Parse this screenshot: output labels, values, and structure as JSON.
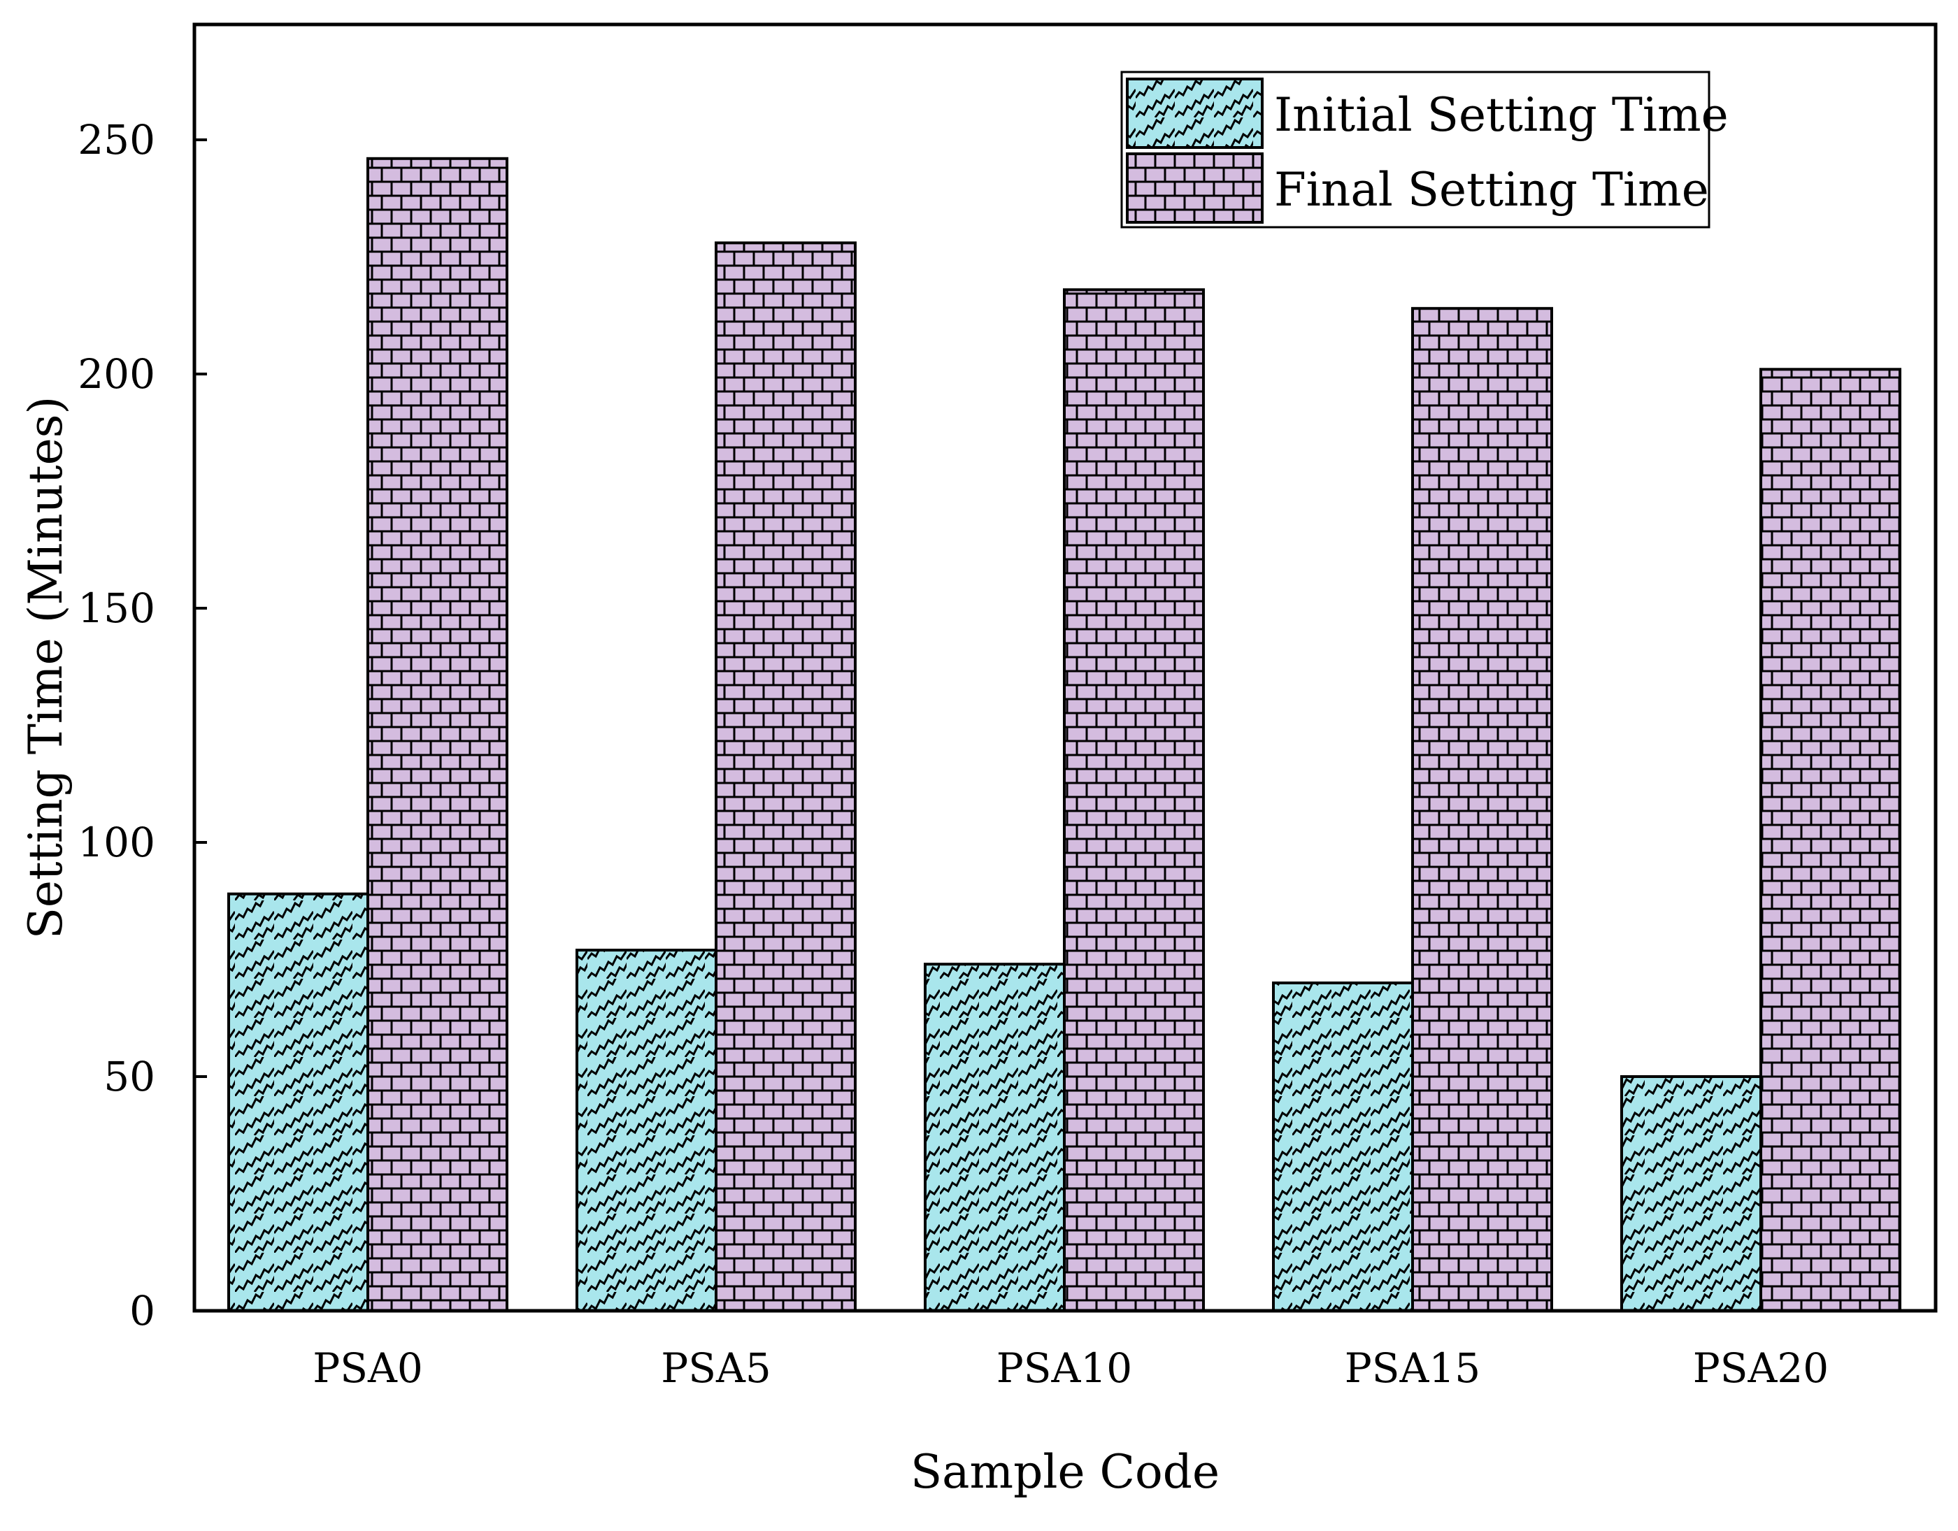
{
  "chart_data": {
    "type": "bar",
    "title": "",
    "xlabel": "Sample Code",
    "ylabel": "Setting Time (Minutes)",
    "categories": [
      "PSA0",
      "PSA5",
      "PSA10",
      "PSA15",
      "PSA20"
    ],
    "series": [
      {
        "name": "Initial Setting Time",
        "values": [
          89,
          77,
          74,
          70,
          50
        ],
        "color": "#a9e6ec",
        "pattern": "diagonal-zigzag-hatch"
      },
      {
        "name": "Final Setting Time",
        "values": [
          246,
          228,
          218,
          214,
          201
        ],
        "color": "#d4bcdf",
        "pattern": "brick-hatch"
      }
    ],
    "ylim": [
      0,
      275
    ],
    "yticks": [
      0,
      50,
      100,
      150,
      200,
      250
    ],
    "grid": false,
    "legend": "top-right"
  }
}
